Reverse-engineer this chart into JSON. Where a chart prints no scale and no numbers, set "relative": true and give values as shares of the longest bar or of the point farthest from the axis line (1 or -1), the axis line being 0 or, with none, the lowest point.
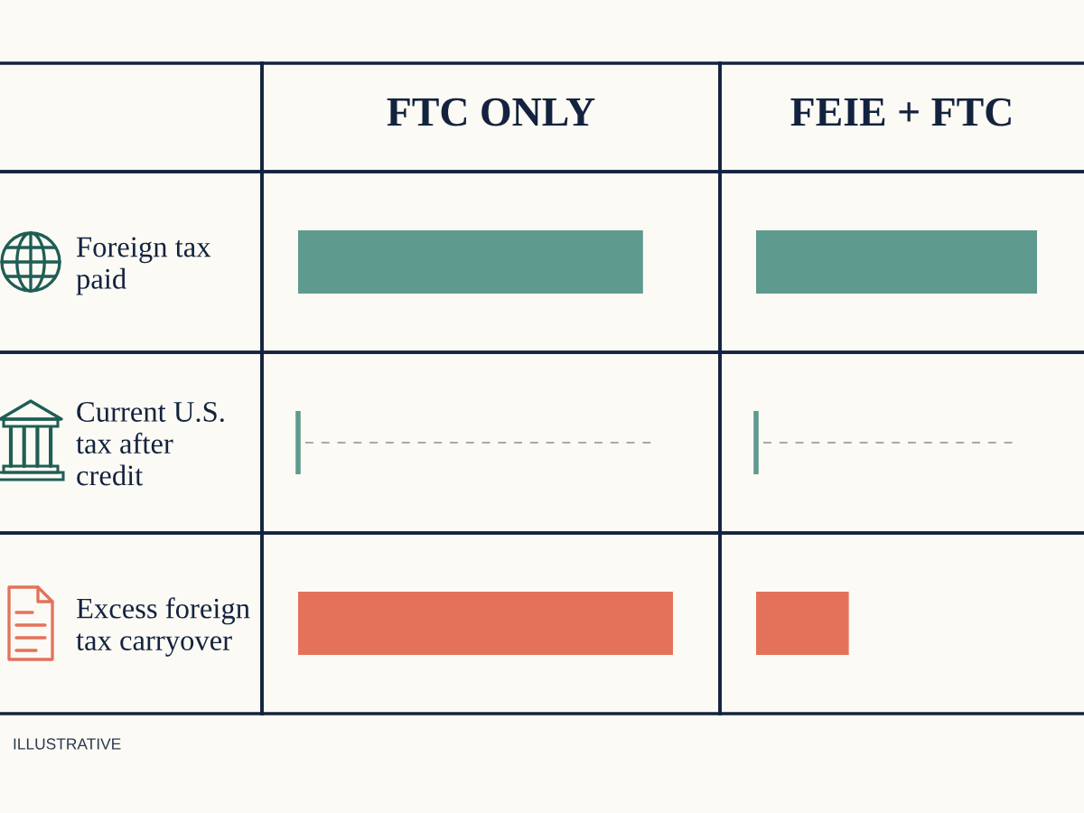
{
  "chart_data": [
    {
      "type": "bar",
      "orientation": "horizontal",
      "relative": true,
      "title": "FTC ONLY",
      "categories": [
        "Foreign tax\npaid",
        "Current U.S.\ntax after\ncredit",
        "Excess foreign\ntax carryover"
      ],
      "values": [
        0.92,
        0,
        1
      ],
      "colors": [
        "#5f9a8f",
        "#5f9a8f",
        "#e4725b"
      ],
      "ref_lines": [
        {
          "axis": "y",
          "value": "Current U.S.\ntax after\ncredit",
          "line_style": "dashed",
          "color": "#a9a9a4"
        }
      ],
      "annotations": [
        "ILLUSTRATIVE"
      ]
    },
    {
      "type": "bar",
      "orientation": "horizontal",
      "relative": true,
      "title": "FEIE + FTC",
      "tick_labels": false,
      "categories": [
        "Foreign tax\npaid",
        "Current U.S.\ntax after\ncredit",
        "Excess foreign\ntax carryover"
      ],
      "values": [
        1,
        0,
        0.33
      ],
      "colors": [
        "#5f9a8f",
        "#5f9a8f",
        "#e4725b"
      ],
      "ref_lines": [
        {
          "axis": "y",
          "value": "Current U.S.\ntax after\ncredit",
          "line_style": "dashed",
          "color": "#a9a9a4"
        }
      ]
    }
  ]
}
